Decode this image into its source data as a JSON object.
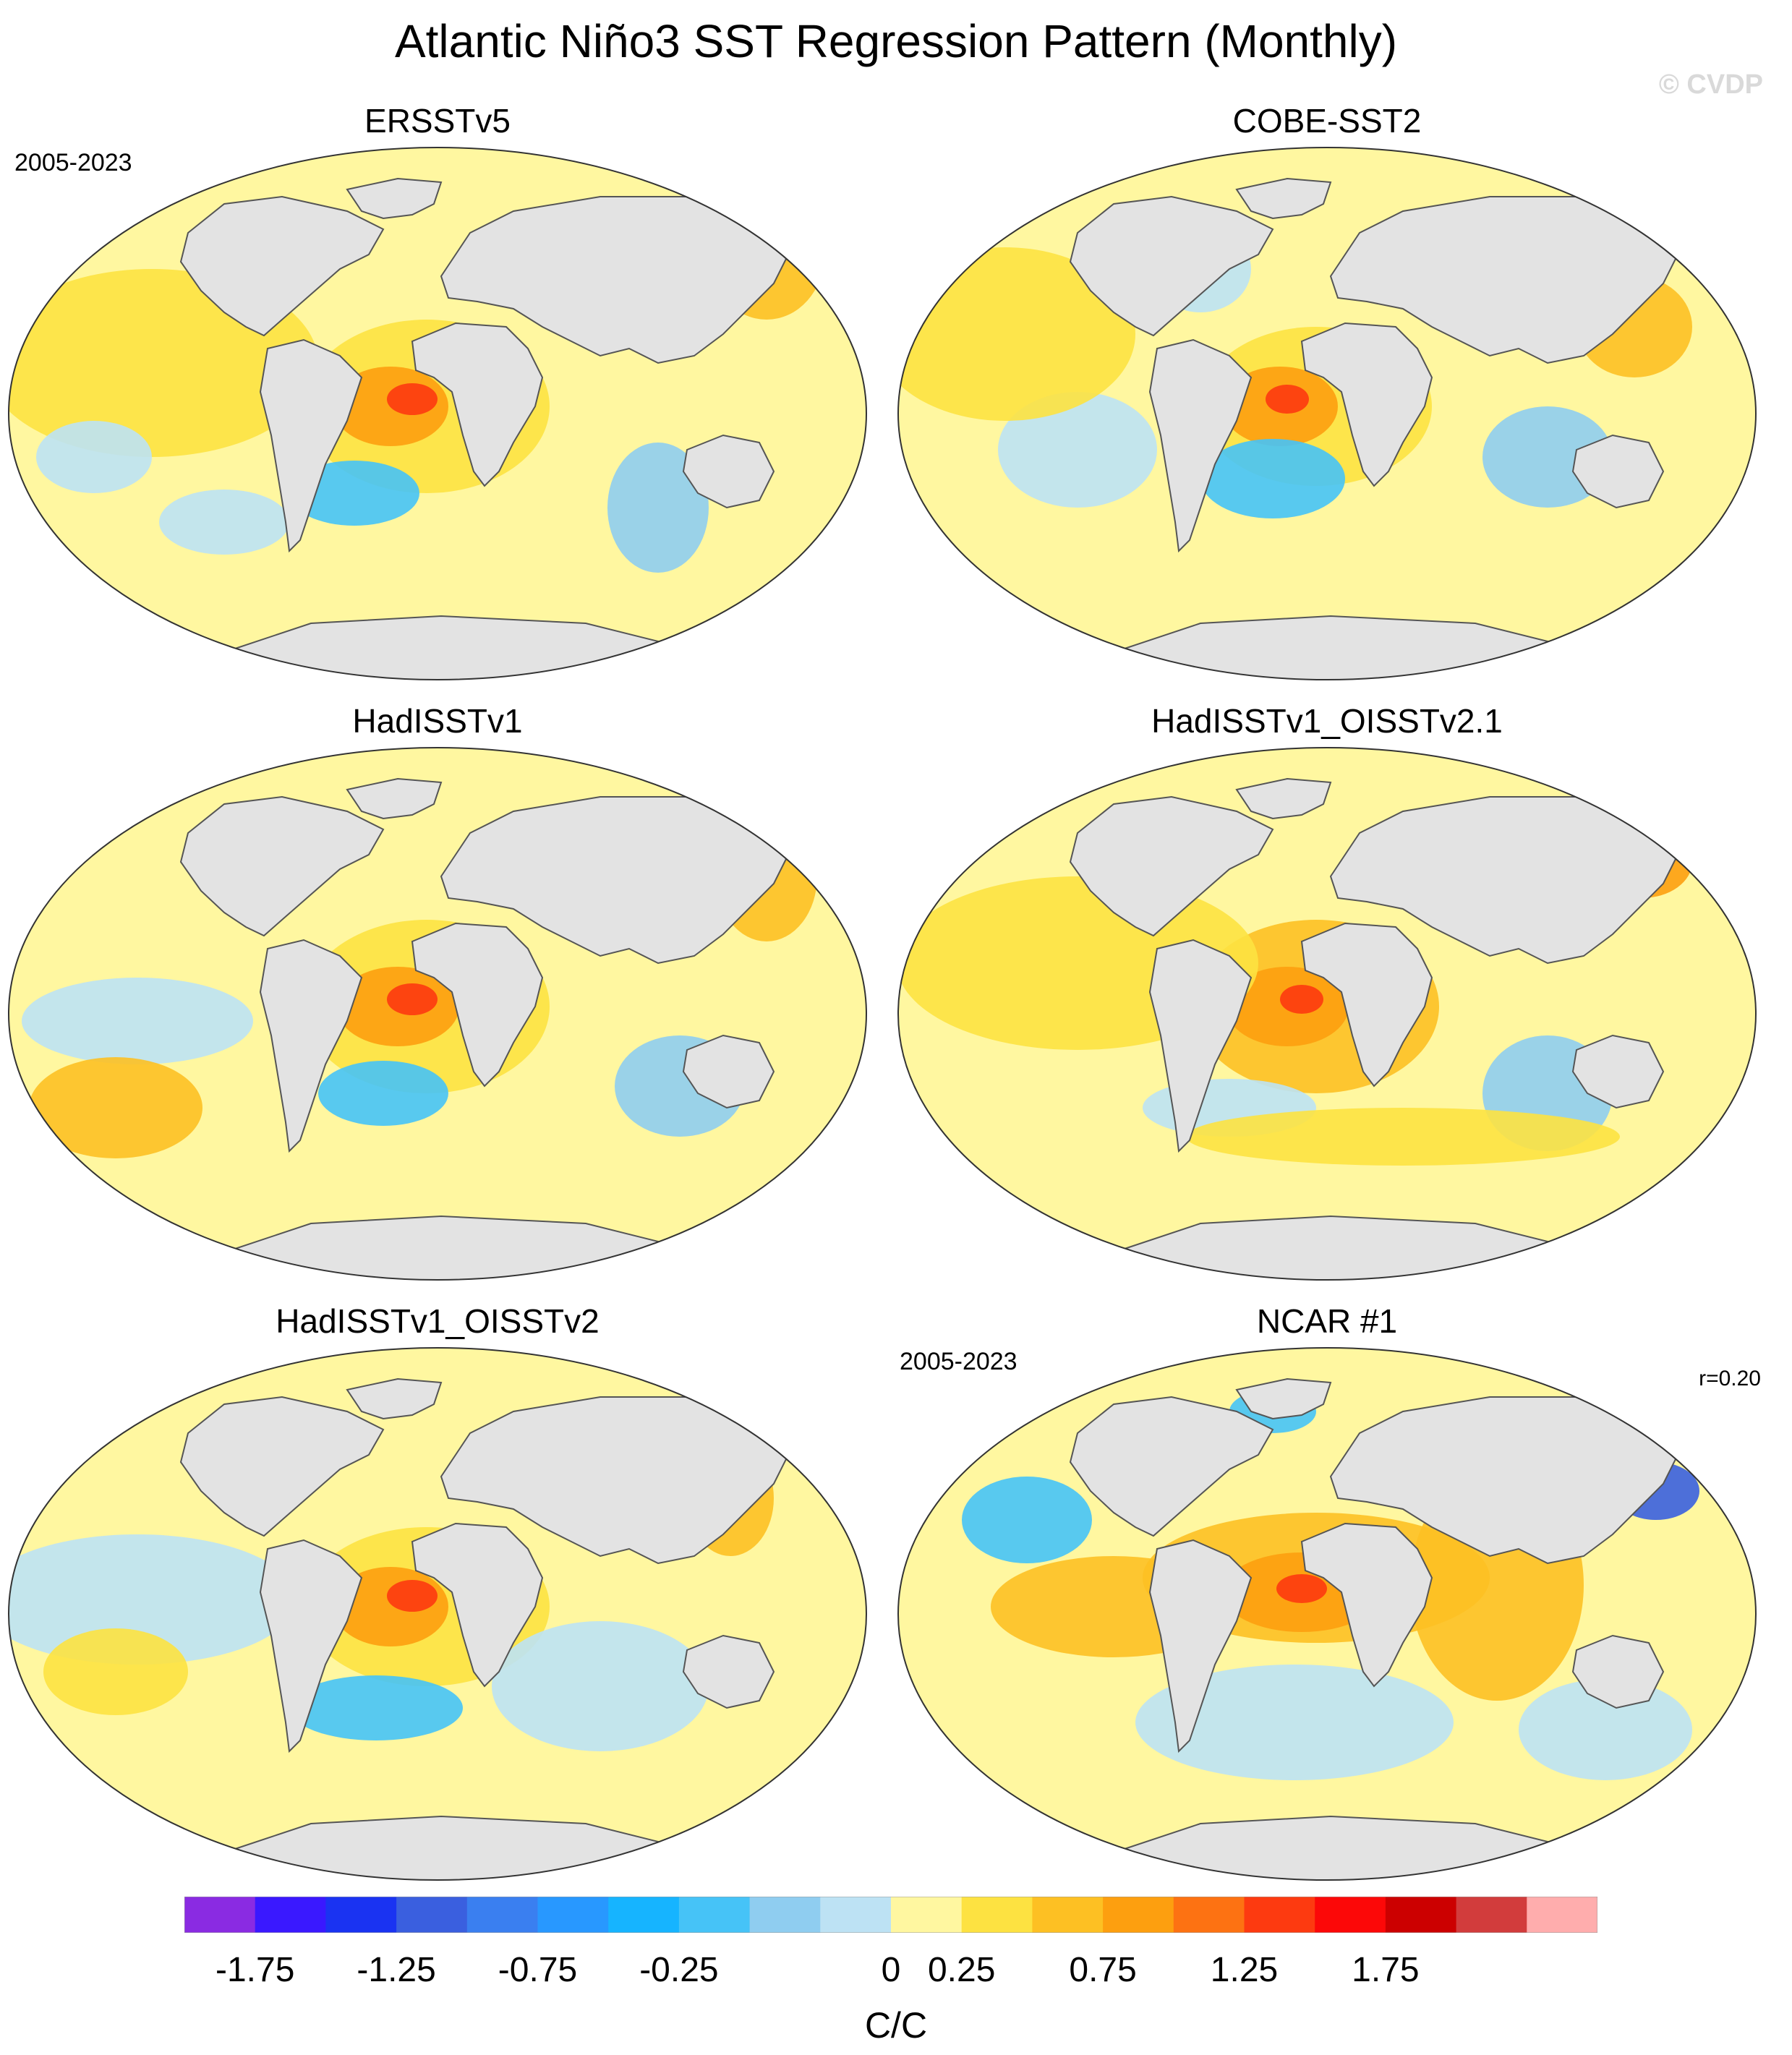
{
  "title": "Atlantic Niño3 SST Regression Pattern (Monthly)",
  "watermark": "© CVDP",
  "chart_data": {
    "type": "heatmap",
    "projection": "global map (elliptical), land masked in light gray",
    "panels": [
      {
        "title": "ERSSTv5",
        "period": "2005-2023",
        "r_label": "",
        "peak_region": "tropical southeast Atlantic (Gulf of Guinea)",
        "peak_value_approx": 1.0
      },
      {
        "title": "COBE-SST2",
        "period": "",
        "r_label": "",
        "peak_region": "tropical southeast Atlantic (Gulf of Guinea)",
        "peak_value_approx": 1.0
      },
      {
        "title": "HadISSTv1",
        "period": "",
        "r_label": "",
        "peak_region": "tropical southeast Atlantic (Gulf of Guinea)",
        "peak_value_approx": 1.0
      },
      {
        "title": "HadISSTv1_OISSTv2.1",
        "period": "",
        "r_label": "",
        "peak_region": "tropical southeast Atlantic (Gulf of Guinea)",
        "peak_value_approx": 1.0
      },
      {
        "title": "HadISSTv1_OISSTv2",
        "period": "",
        "r_label": "",
        "peak_region": "tropical southeast Atlantic (Gulf of Guinea)",
        "peak_value_approx": 1.0
      },
      {
        "title": "NCAR #1",
        "period": "2005-2023",
        "r_label": "r=0.20",
        "peak_region": "tropical southeast Atlantic (Gulf of Guinea)",
        "peak_value_approx": 1.0
      }
    ],
    "colorbar": {
      "units": "C/C",
      "colors": [
        "#8a2be2",
        "#3a18ff",
        "#1a33f2",
        "#3a5fdf",
        "#3a7ff0",
        "#2898ff",
        "#16b4ff",
        "#46c3f7",
        "#8fcdf0",
        "#bde2f4",
        "#fff7a0",
        "#fde241",
        "#fdc023",
        "#fd9f0f",
        "#fd7212",
        "#fd3a10",
        "#fc0808",
        "#cc0000",
        "#d23c3c",
        "#ffadad"
      ],
      "tick_labels": [
        "-1.75",
        "-1.25",
        "-0.75",
        "-0.25",
        "0",
        "0.25",
        "0.75",
        "1.25",
        "1.75"
      ],
      "tick_boundary_index": [
        1,
        3,
        5,
        7,
        10,
        11,
        13,
        15,
        17
      ]
    }
  }
}
